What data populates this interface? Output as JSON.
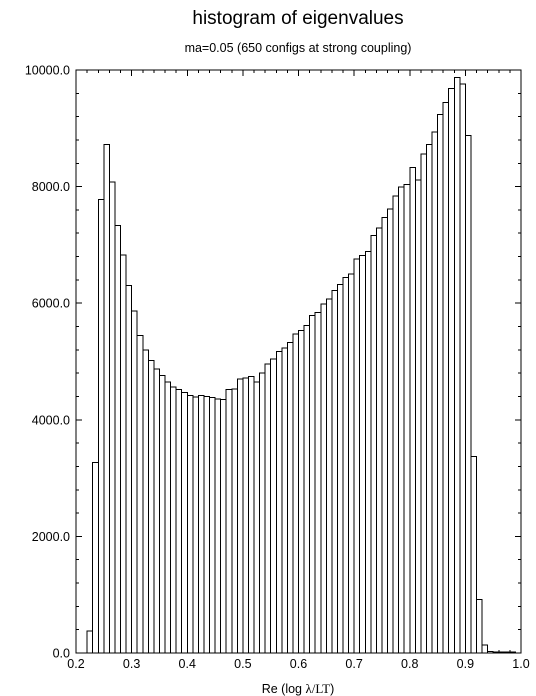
{
  "chart_data": {
    "type": "bar",
    "title": "histogram of eigenvalues",
    "subtitle": "ma=0.05 (650 configs at strong coupling)",
    "xlabel": {
      "prefix": "Re (log ",
      "symbol": "λ/LT",
      "suffix": ")"
    },
    "xlim": [
      0.2,
      1.0
    ],
    "ylim": [
      0,
      10000
    ],
    "x_ticks": [
      {
        "value": 0.2,
        "label": "0.2"
      },
      {
        "value": 0.3,
        "label": "0.3"
      },
      {
        "value": 0.4,
        "label": "0.4"
      },
      {
        "value": 0.5,
        "label": "0.5"
      },
      {
        "value": 0.6,
        "label": "0.6"
      },
      {
        "value": 0.7,
        "label": "0.7"
      },
      {
        "value": 0.8,
        "label": "0.8"
      },
      {
        "value": 0.9,
        "label": "0.9"
      },
      {
        "value": 1.0,
        "label": "1.0"
      }
    ],
    "y_ticks": [
      {
        "value": 0,
        "label": "0.0"
      },
      {
        "value": 2000,
        "label": "2000.0"
      },
      {
        "value": 4000,
        "label": "4000.0"
      },
      {
        "value": 6000,
        "label": "6000.0"
      },
      {
        "value": 8000,
        "label": "8000.0"
      },
      {
        "value": 10000,
        "label": "10000.0"
      }
    ],
    "bin_width": 0.01,
    "bin_starts": [
      0.22,
      0.23,
      0.24,
      0.25,
      0.26,
      0.27,
      0.28,
      0.29,
      0.3,
      0.31,
      0.32,
      0.33,
      0.34,
      0.35,
      0.36,
      0.37,
      0.38,
      0.39,
      0.4,
      0.41,
      0.42,
      0.43,
      0.44,
      0.45,
      0.46,
      0.47,
      0.48,
      0.49,
      0.5,
      0.51,
      0.52,
      0.53,
      0.54,
      0.55,
      0.56,
      0.57,
      0.58,
      0.59,
      0.6,
      0.61,
      0.62,
      0.63,
      0.64,
      0.65,
      0.66,
      0.67,
      0.68,
      0.69,
      0.7,
      0.71,
      0.72,
      0.73,
      0.74,
      0.75,
      0.76,
      0.77,
      0.78,
      0.79,
      0.8,
      0.81,
      0.82,
      0.83,
      0.84,
      0.85,
      0.86,
      0.87,
      0.88,
      0.89,
      0.9,
      0.91,
      0.92,
      0.93,
      0.94,
      0.95,
      0.96,
      0.97,
      0.98
    ],
    "values": [
      380,
      3270,
      7780,
      8720,
      8080,
      7330,
      6830,
      6300,
      5870,
      5450,
      5200,
      5020,
      4870,
      4760,
      4650,
      4560,
      4520,
      4470,
      4420,
      4390,
      4420,
      4400,
      4380,
      4360,
      4350,
      4520,
      4530,
      4700,
      4720,
      4740,
      4650,
      4800,
      4960,
      5040,
      5170,
      5230,
      5330,
      5470,
      5530,
      5620,
      5790,
      5840,
      5990,
      6070,
      6220,
      6320,
      6440,
      6500,
      6760,
      6820,
      6890,
      7160,
      7290,
      7470,
      7620,
      7840,
      7990,
      8040,
      8330,
      8110,
      8560,
      8720,
      8940,
      9240,
      9440,
      9680,
      9870,
      9760,
      8880,
      3370,
      920,
      140,
      30,
      20,
      20,
      20,
      20
    ],
    "grid": false
  }
}
